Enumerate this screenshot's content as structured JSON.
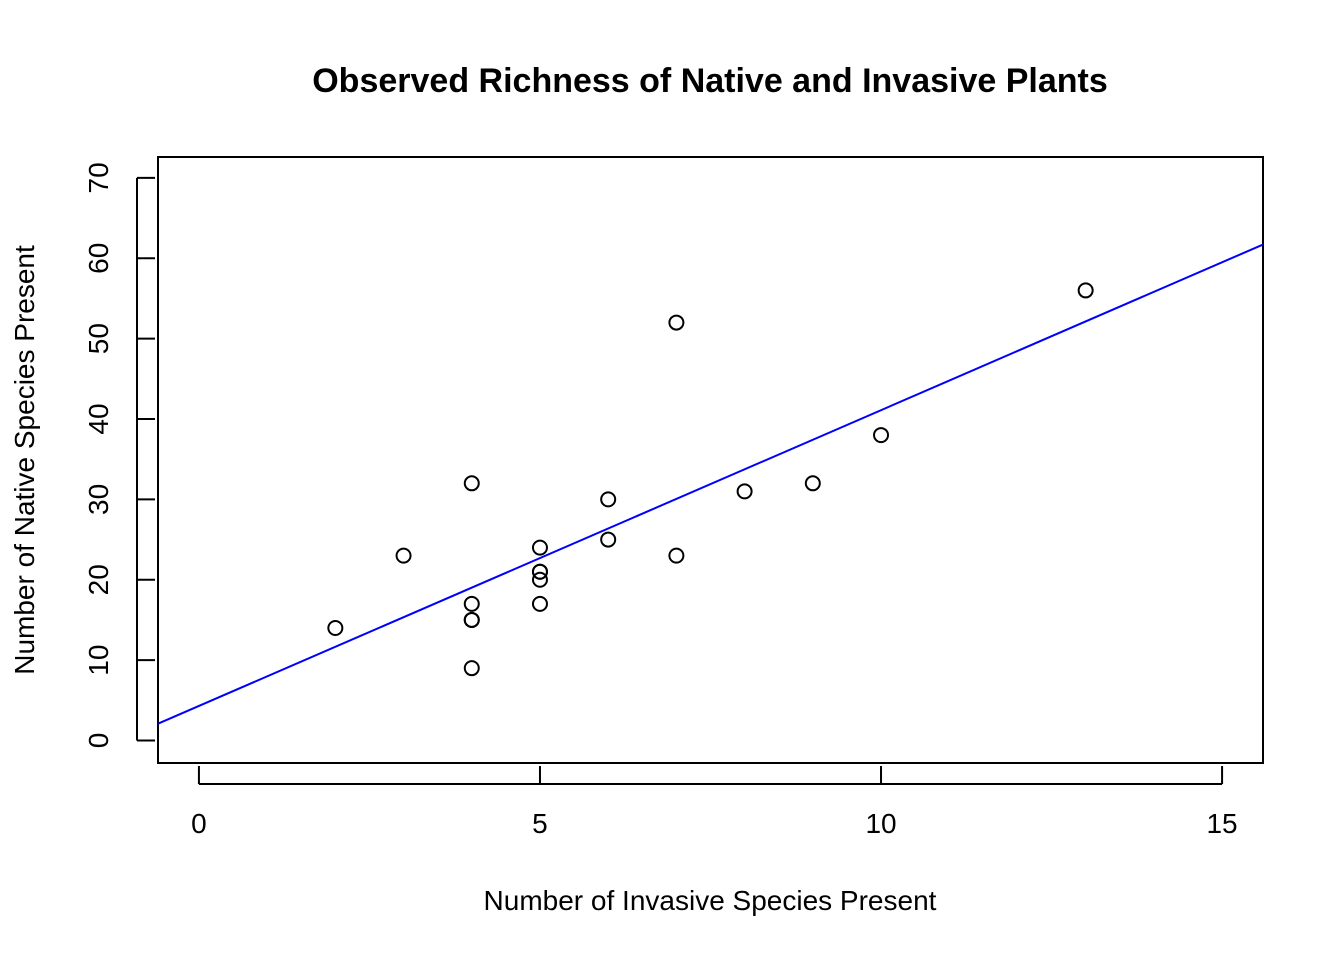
{
  "chart_data": {
    "type": "scatter",
    "title": "Observed Richness of Native and Invasive Plants",
    "xlabel": "Number of Invasive Species Present",
    "ylabel": "Number of Native Species Present",
    "xlim": [
      -0.6,
      15.6
    ],
    "ylim": [
      -2.8,
      72.6
    ],
    "xticks": [
      0,
      5,
      10,
      15
    ],
    "yticks": [
      0,
      10,
      20,
      30,
      40,
      50,
      60,
      70
    ],
    "grid": false,
    "legend": "none",
    "marker": "open-circle",
    "marker_color": "#000000",
    "series": [
      {
        "x": [
          2,
          3,
          4,
          4,
          4,
          4,
          4,
          5,
          5,
          5,
          5,
          5,
          6,
          6,
          7,
          7,
          8,
          9,
          10,
          13
        ],
        "y": [
          14,
          23,
          32,
          17,
          15,
          15,
          9,
          24,
          21,
          20,
          17,
          21,
          30,
          25,
          52,
          23,
          31,
          32,
          38,
          56
        ]
      }
    ],
    "regression_line": {
      "color": "#0000ff",
      "intercept": 4.3,
      "slope": 3.68
    }
  }
}
